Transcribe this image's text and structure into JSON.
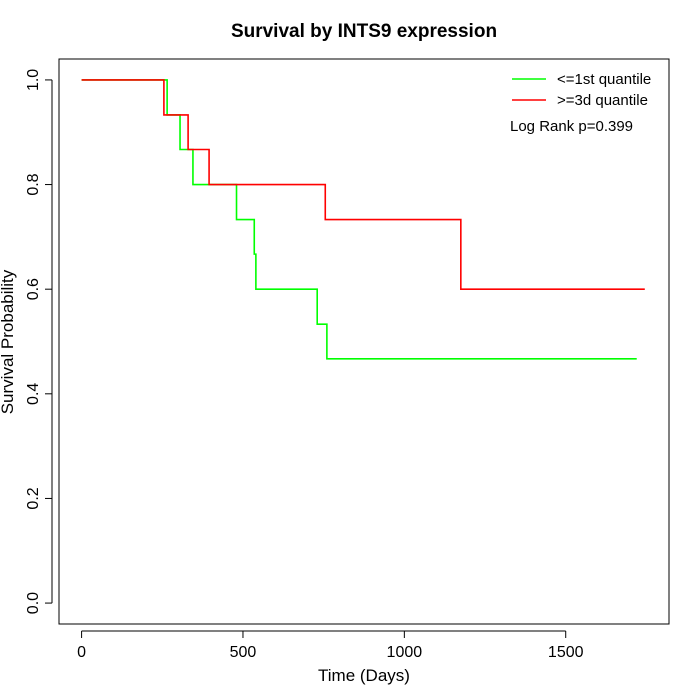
{
  "chart_data": {
    "type": "line",
    "title": "Survival by INTS9 expression",
    "xlabel": "Time (Days)",
    "ylabel": "Survival Probability",
    "xlim": [
      -70,
      1820
    ],
    "ylim": [
      -0.04,
      1.04
    ],
    "x_ticks": [
      0,
      500,
      1000,
      1500
    ],
    "y_ticks": [
      0.0,
      0.2,
      0.4,
      0.6,
      0.8,
      1.0
    ],
    "x_tick_labels": [
      "0",
      "500",
      "1000",
      "1500"
    ],
    "y_tick_labels": [
      "0.0",
      "0.2",
      "0.4",
      "0.6",
      "0.8",
      "1.0"
    ],
    "grid": false,
    "legend_position": "top-right",
    "annotation": "Log Rank p=0.399",
    "series": [
      {
        "name": "<=1st quantile",
        "color": "#00ff00",
        "step": true,
        "x": [
          0,
          265,
          305,
          345,
          480,
          535,
          540,
          730,
          760,
          1720
        ],
        "y": [
          1.0,
          0.933,
          0.867,
          0.8,
          0.733,
          0.667,
          0.6,
          0.533,
          0.467,
          0.467
        ]
      },
      {
        "name": ">=3d quantile",
        "color": "#ff0000",
        "step": true,
        "x": [
          0,
          255,
          330,
          395,
          755,
          1175,
          1745
        ],
        "y": [
          1.0,
          0.933,
          0.867,
          0.8,
          0.733,
          0.6,
          0.6
        ]
      }
    ]
  }
}
